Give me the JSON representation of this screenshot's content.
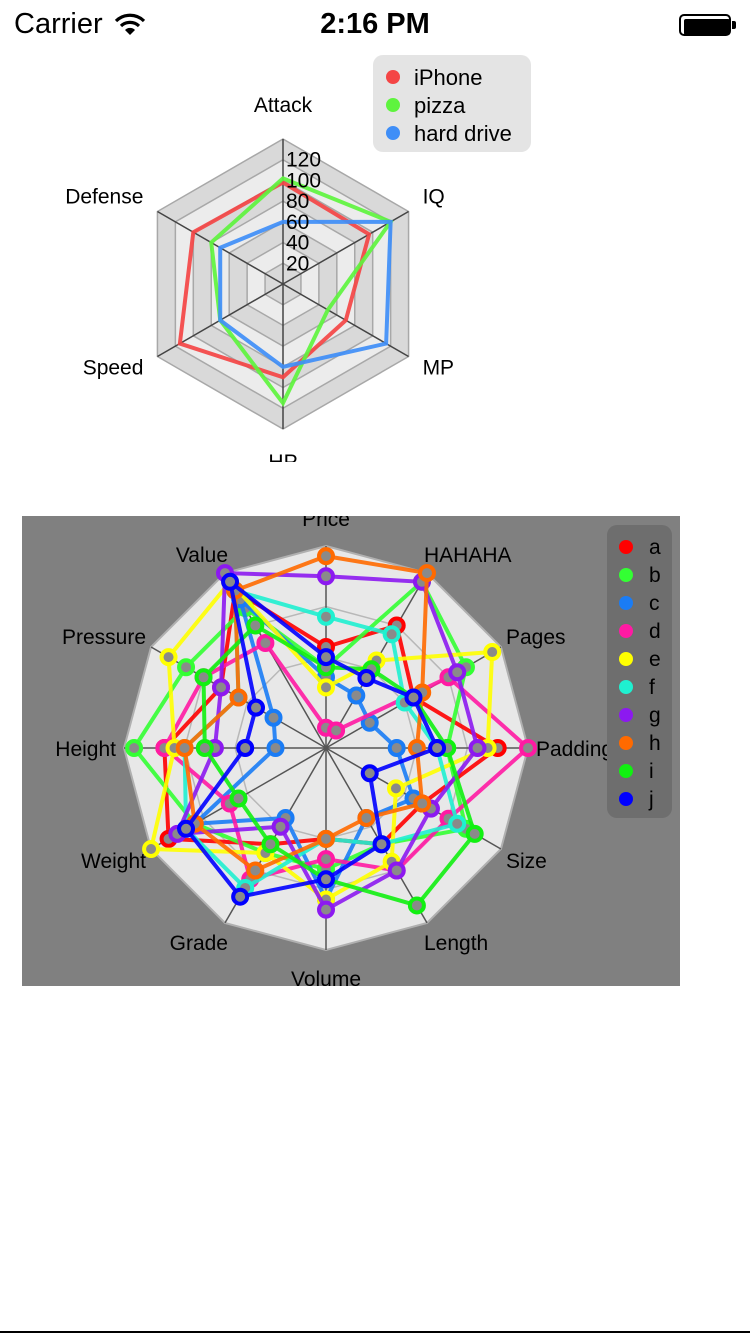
{
  "status_bar": {
    "carrier": "Carrier",
    "time": "2:16 PM",
    "wifi_icon": "wifi-icon",
    "battery_icon": "battery-icon",
    "battery_level": 1.0
  },
  "chart_data": [
    {
      "type": "radar",
      "title": "",
      "axes": [
        "Attack",
        "IQ",
        "MP",
        "HP",
        "Speed",
        "Defense"
      ],
      "rlim": [
        0,
        140
      ],
      "tick_labels": [
        "20",
        "40",
        "60",
        "80",
        "100",
        "120"
      ],
      "grid": true,
      "legend_placement": "top-right",
      "series": [
        {
          "name": "iPhone",
          "color": "#f44545",
          "values": [
            98,
            96,
            70,
            90,
            115,
            100
          ]
        },
        {
          "name": "pizza",
          "color": "#5ef43e",
          "values": [
            102,
            120,
            50,
            115,
            70,
            80
          ]
        },
        {
          "name": "hard drive",
          "color": "#3f8ef7",
          "values": [
            60,
            120,
            115,
            80,
            70,
            70
          ]
        }
      ]
    },
    {
      "type": "radar",
      "title": "",
      "axes": [
        "Price",
        "HAHAHA",
        "Pages",
        "Padding",
        "Size",
        "Length",
        "Volume",
        "Grade",
        "Weight",
        "Height",
        "Pressure",
        "Value"
      ],
      "rlim": [
        0,
        100
      ],
      "grid": true,
      "background": "#808080",
      "legend_placement": "top-right",
      "series": [
        {
          "name": "a",
          "color": "#ff0000",
          "values": [
            50,
            70,
            50,
            85,
            55,
            55,
            45,
            55,
            90,
            80,
            60,
            90
          ]
        },
        {
          "name": "b",
          "color": "#33ff33",
          "values": [
            40,
            95,
            80,
            60,
            80,
            55,
            60,
            60,
            75,
            95,
            80,
            80
          ]
        },
        {
          "name": "c",
          "color": "#1a7cf5",
          "values": [
            35,
            30,
            25,
            35,
            50,
            40,
            75,
            40,
            75,
            25,
            30,
            85
          ]
        },
        {
          "name": "d",
          "color": "#ff1aa3",
          "values": [
            10,
            10,
            70,
            100,
            70,
            70,
            55,
            75,
            55,
            80,
            70,
            60
          ]
        },
        {
          "name": "e",
          "color": "#ffff00",
          "values": [
            30,
            50,
            95,
            80,
            40,
            65,
            75,
            60,
            100,
            75,
            90,
            95
          ]
        },
        {
          "name": "f",
          "color": "#1ff0d0",
          "values": [
            65,
            65,
            45,
            55,
            75,
            55,
            45,
            80,
            80,
            70,
            50,
            90
          ]
        },
        {
          "name": "g",
          "color": "#8c19f0",
          "values": [
            85,
            95,
            75,
            75,
            60,
            70,
            80,
            45,
            85,
            55,
            60,
            100
          ]
        },
        {
          "name": "h",
          "color": "#ff6a00",
          "values": [
            95,
            100,
            55,
            45,
            55,
            40,
            45,
            70,
            75,
            70,
            50,
            90
          ]
        },
        {
          "name": "i",
          "color": "#11f011",
          "values": [
            40,
            45,
            50,
            60,
            85,
            90,
            65,
            55,
            50,
            60,
            70,
            70
          ]
        },
        {
          "name": "j",
          "color": "#0000ff",
          "values": [
            45,
            40,
            50,
            55,
            25,
            55,
            65,
            85,
            80,
            40,
            40,
            95
          ]
        }
      ]
    }
  ]
}
